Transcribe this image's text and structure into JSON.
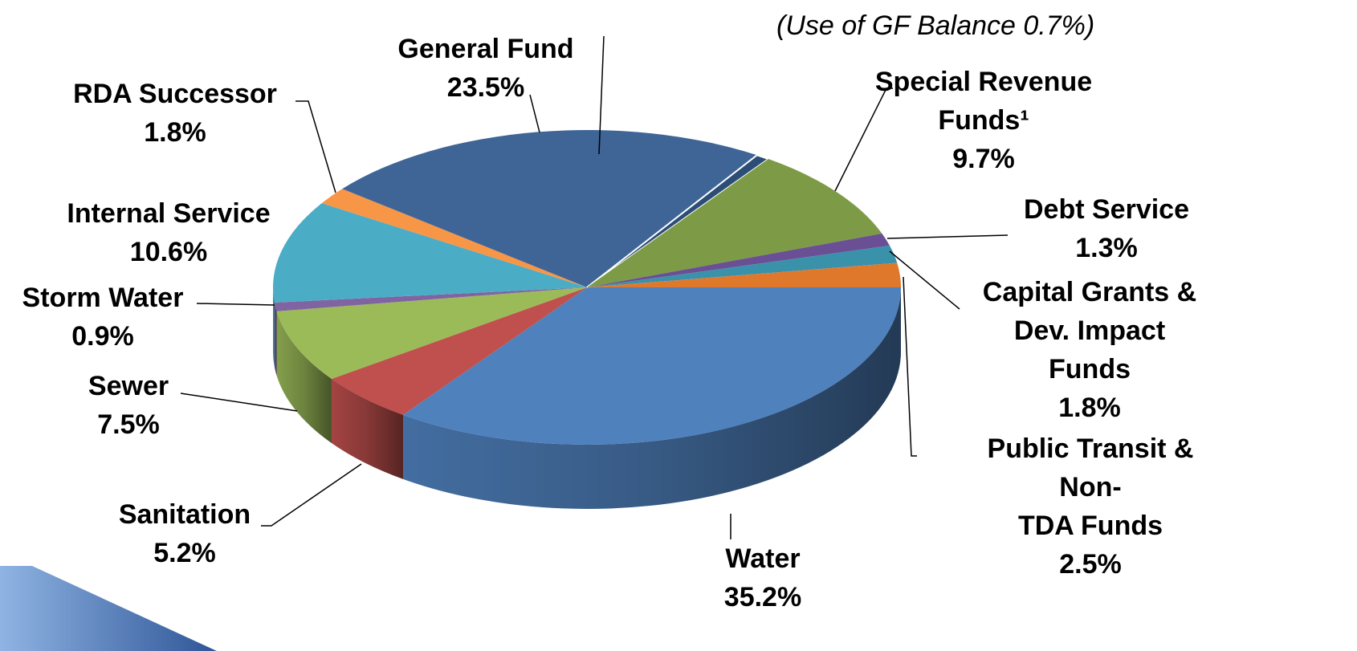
{
  "chart_data": {
    "type": "pie",
    "categories": [
      "Water",
      "Sanitation",
      "Sewer",
      "Storm Water",
      "Internal Service",
      "RDA Successor",
      "General Fund",
      "(Use of GF Balance 0.7%)",
      "Special Revenue\nFunds¹",
      "Debt Service",
      "Capital Grants &\nDev. Impact\nFunds",
      "Public Transit & Non-\nTDA Funds"
    ],
    "values": [
      35.2,
      5.2,
      7.5,
      0.9,
      10.6,
      1.8,
      23.5,
      0.7,
      9.7,
      1.3,
      1.8,
      2.5
    ],
    "value_labels": [
      "35.2%",
      "5.2%",
      "7.5%",
      "0.9%",
      "10.6%",
      "1.8%",
      "23.5%",
      null,
      "9.7%",
      "1.3%",
      "1.8%",
      "2.5%"
    ],
    "colors": [
      "#4f81bd",
      "#c0504d",
      "#9bbb59",
      "#8064a2",
      "#4bacc6",
      "#f79646",
      "#3f6597",
      "#2c4d75",
      "#7d9b47",
      "#6a4f94",
      "#3a91aa",
      "#e0782c"
    ]
  }
}
